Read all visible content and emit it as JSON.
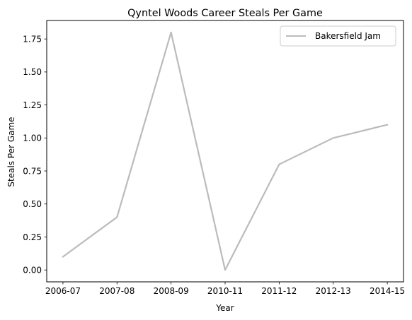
{
  "chart_data": {
    "type": "line",
    "title": "Qyntel Woods Career Steals Per Game",
    "xlabel": "Year",
    "ylabel": "Steals Per Game",
    "categories": [
      "2006-07",
      "2007-08",
      "2008-09",
      "2010-11",
      "2011-12",
      "2012-13",
      "2014-15"
    ],
    "series": [
      {
        "name": "Bakersfield Jam",
        "values": [
          0.1,
          0.4,
          1.8,
          0.0,
          0.8,
          1.0,
          1.1
        ],
        "color": "#bbbbbb"
      }
    ],
    "ylim": [
      -0.09,
      1.89
    ],
    "yticks": [
      "0.00",
      "0.25",
      "0.50",
      "0.75",
      "1.00",
      "1.25",
      "1.50",
      "1.75"
    ],
    "yticks_values": [
      0,
      0.25,
      0.5,
      0.75,
      1.0,
      1.25,
      1.5,
      1.75
    ],
    "grid": false,
    "legend_position": "top-right"
  }
}
